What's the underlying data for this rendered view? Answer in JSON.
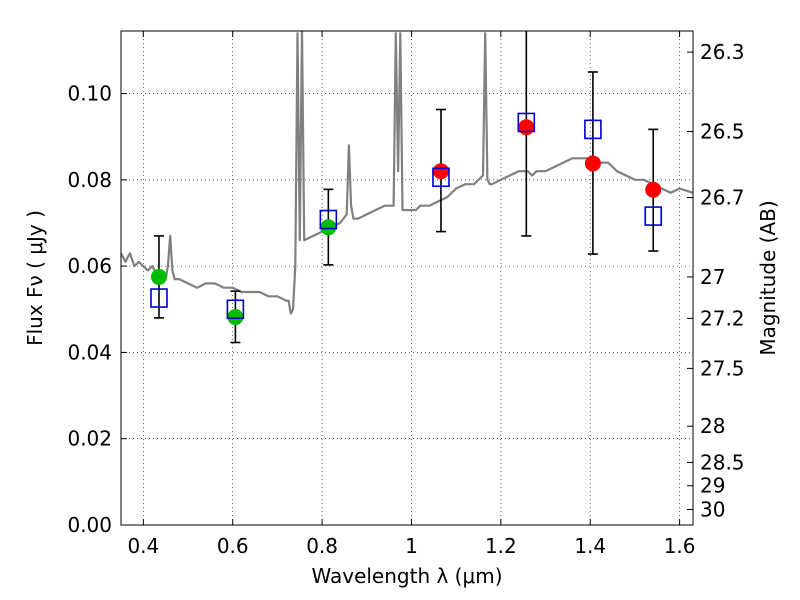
{
  "chart_data": {
    "type": "scatter",
    "xlabel": "Wavelength  λ (μm)",
    "ylabel": "Flux  Fν  ( μJy )",
    "y2label": "Magnitude (AB)",
    "xlim": [
      0.35,
      1.63
    ],
    "ylim": [
      0.0,
      0.1145
    ],
    "grid": true,
    "x_ticks": [
      0.4,
      0.6,
      0.8,
      1.0,
      1.2,
      1.4,
      1.6
    ],
    "x_tick_labels": [
      "0.4",
      "0.6",
      "0.8",
      "1",
      "1.2",
      "1.4",
      "1.6"
    ],
    "y_ticks": [
      0.0,
      0.02,
      0.04,
      0.06,
      0.08,
      0.1
    ],
    "y_tick_labels": [
      "0.00",
      "0.02",
      "0.04",
      "0.06",
      "0.08",
      "0.10"
    ],
    "y2_ticks": [
      {
        "label": "26.3",
        "flux": 0.1096
      },
      {
        "label": "26.5",
        "flux": 0.0912
      },
      {
        "label": "26.7",
        "flux": 0.0759
      },
      {
        "label": "27",
        "flux": 0.0575
      },
      {
        "label": "27.2",
        "flux": 0.0479
      },
      {
        "label": "27.5",
        "flux": 0.0363
      },
      {
        "label": "28",
        "flux": 0.0229
      },
      {
        "label": "28.5",
        "flux": 0.0145
      },
      {
        "label": "29",
        "flux": 0.0091
      },
      {
        "label": "30",
        "flux": 0.0036
      }
    ],
    "colors": {
      "model": "#808080",
      "optical_points": "#00bb00",
      "nir_points": "#ff0000",
      "model_photometry": "#0000cc",
      "errorbar": "#000000"
    },
    "series": [
      {
        "kind": "model_spectrum",
        "x": [
          0.35,
          0.36,
          0.37,
          0.38,
          0.39,
          0.4,
          0.41,
          0.42,
          0.43,
          0.44,
          0.45,
          0.455,
          0.46,
          0.465,
          0.47,
          0.48,
          0.5,
          0.52,
          0.54,
          0.56,
          0.58,
          0.6,
          0.62,
          0.64,
          0.66,
          0.68,
          0.7,
          0.72,
          0.725,
          0.73,
          0.735,
          0.74,
          0.745,
          0.75,
          0.755,
          0.76,
          0.78,
          0.8,
          0.82,
          0.84,
          0.855,
          0.86,
          0.865,
          0.87,
          0.88,
          0.9,
          0.92,
          0.94,
          0.96,
          0.965,
          0.97,
          0.975,
          0.98,
          0.99,
          1.0,
          1.01,
          1.02,
          1.04,
          1.06,
          1.08,
          1.1,
          1.12,
          1.14,
          1.16,
          1.165,
          1.17,
          1.175,
          1.18,
          1.2,
          1.22,
          1.24,
          1.26,
          1.27,
          1.28,
          1.3,
          1.32,
          1.34,
          1.36,
          1.38,
          1.4,
          1.42,
          1.44,
          1.46,
          1.48,
          1.5,
          1.52,
          1.54,
          1.56,
          1.58,
          1.6,
          1.63
        ],
        "y": [
          0.063,
          0.061,
          0.063,
          0.06,
          0.061,
          0.06,
          0.059,
          0.06,
          0.058,
          0.058,
          0.057,
          0.06,
          0.067,
          0.059,
          0.057,
          0.057,
          0.056,
          0.055,
          0.056,
          0.056,
          0.055,
          0.055,
          0.054,
          0.054,
          0.054,
          0.053,
          0.053,
          0.052,
          0.052,
          0.049,
          0.05,
          0.06,
          0.114,
          0.066,
          0.115,
          0.066,
          0.067,
          0.068,
          0.069,
          0.07,
          0.072,
          0.088,
          0.074,
          0.071,
          0.071,
          0.072,
          0.073,
          0.074,
          0.074,
          0.114,
          0.082,
          0.114,
          0.073,
          0.073,
          0.073,
          0.073,
          0.074,
          0.074,
          0.075,
          0.076,
          0.078,
          0.079,
          0.079,
          0.081,
          0.114,
          0.08,
          0.079,
          0.079,
          0.08,
          0.081,
          0.082,
          0.082,
          0.081,
          0.082,
          0.082,
          0.083,
          0.084,
          0.085,
          0.085,
          0.085,
          0.084,
          0.084,
          0.082,
          0.081,
          0.08,
          0.08,
          0.079,
          0.078,
          0.077,
          0.078,
          0.077
        ]
      },
      {
        "kind": "observed_optical",
        "x": [
          0.435,
          0.606,
          0.814
        ],
        "y": [
          0.0575,
          0.0482,
          0.069
        ],
        "yerr_low": [
          0.048,
          0.0423,
          0.0603
        ],
        "yerr_high": [
          0.067,
          0.0542,
          0.0778
        ]
      },
      {
        "kind": "observed_nir",
        "x": [
          1.066,
          1.257,
          1.406,
          1.541
        ],
        "y": [
          0.082,
          0.0922,
          0.0838,
          0.0777
        ],
        "yerr_low": [
          0.068,
          0.067,
          0.0628,
          0.0635
        ],
        "yerr_high": [
          0.0963,
          0.115,
          0.105,
          0.0917
        ]
      },
      {
        "kind": "model_photometry",
        "x": [
          0.435,
          0.606,
          0.814,
          1.066,
          1.257,
          1.406,
          1.541
        ],
        "y": [
          0.0526,
          0.05,
          0.0708,
          0.0806,
          0.0933,
          0.0917,
          0.0716
        ]
      }
    ]
  }
}
